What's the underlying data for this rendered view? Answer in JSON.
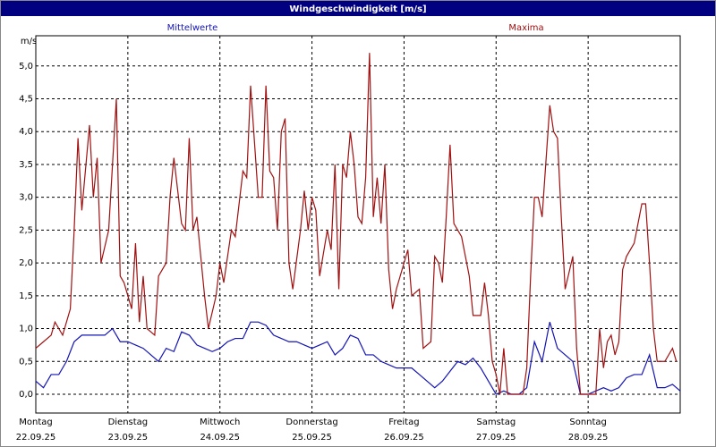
{
  "chart_data": {
    "type": "line",
    "title": "Windgeschwindigkeit [m/s]",
    "y_label": "m/s",
    "xlim": [
      0,
      168
    ],
    "ylim": [
      -0.286,
      5.46
    ],
    "xticks": [
      {
        "value": 0,
        "label": "Montag"
      },
      {
        "value": 24,
        "label": "Dienstag"
      },
      {
        "value": 48,
        "label": "Mittwoch"
      },
      {
        "value": 72,
        "label": "Donnerstag"
      },
      {
        "value": 96,
        "label": "Freitag"
      },
      {
        "value": 120,
        "label": "Samstag"
      },
      {
        "value": 144,
        "label": "Sonntag"
      }
    ],
    "xtick_dates": [
      "22.09.25",
      "23.09.25",
      "24.09.25",
      "25.09.25",
      "26.09.25",
      "27.09.25",
      "28.09.25"
    ],
    "yticks": [
      {
        "value": 0,
        "label": "0,0"
      },
      {
        "value": 0.5,
        "label": "0,5"
      },
      {
        "value": 1,
        "label": "1,0"
      },
      {
        "value": 1.5,
        "label": "1,5"
      },
      {
        "value": 2,
        "label": "2,0"
      },
      {
        "value": 2.5,
        "label": "2,5"
      },
      {
        "value": 3,
        "label": "3,0"
      },
      {
        "value": 3.5,
        "label": "3,5"
      },
      {
        "value": 4,
        "label": "4,0"
      },
      {
        "value": 4.5,
        "label": "4,5"
      },
      {
        "value": 5,
        "label": "5,0"
      }
    ],
    "grid": true,
    "series": [
      {
        "name": "Mittelwerte",
        "color": "#1414b4",
        "x": [
          0,
          2,
          4,
          6,
          8,
          10,
          12,
          14,
          16,
          18,
          20,
          22,
          24,
          26,
          28,
          30,
          32,
          34,
          36,
          38,
          40,
          42,
          44,
          46,
          48,
          50,
          52,
          54,
          56,
          58,
          60,
          62,
          64,
          66,
          68,
          70,
          72,
          74,
          76,
          78,
          80,
          82,
          84,
          86,
          88,
          90,
          92,
          94,
          96,
          98,
          100,
          102,
          104,
          106,
          108,
          110,
          112,
          114,
          116,
          118,
          120,
          122,
          124,
          126,
          128,
          130,
          132,
          134,
          136,
          138,
          140,
          142,
          144,
          146,
          148,
          150,
          152,
          154,
          156,
          158,
          160,
          162,
          164,
          166,
          168
        ],
        "values": [
          0.2,
          0.1,
          0.3,
          0.3,
          0.5,
          0.8,
          0.9,
          0.9,
          0.9,
          0.9,
          1.0,
          0.8,
          0.8,
          0.75,
          0.7,
          0.6,
          0.5,
          0.7,
          0.65,
          0.95,
          0.9,
          0.75,
          0.7,
          0.65,
          0.7,
          0.8,
          0.85,
          0.85,
          1.1,
          1.1,
          1.05,
          0.9,
          0.85,
          0.8,
          0.8,
          0.75,
          0.7,
          0.75,
          0.8,
          0.6,
          0.7,
          0.9,
          0.85,
          0.6,
          0.6,
          0.5,
          0.45,
          0.4,
          0.4,
          0.4,
          0.3,
          0.2,
          0.1,
          0.2,
          0.35,
          0.5,
          0.45,
          0.55,
          0.4,
          0.2,
          0.0,
          0.05,
          0.0,
          0.0,
          0.1,
          0.8,
          0.5,
          1.1,
          0.7,
          0.6,
          0.5,
          0.0,
          0.0,
          0.05,
          0.1,
          0.05,
          0.1,
          0.25,
          0.3,
          0.3,
          0.6,
          0.1,
          0.1,
          0.15,
          0.05
        ]
      },
      {
        "name": "Maxima",
        "color": "#a01010",
        "x": [
          0,
          2,
          4,
          5,
          7,
          9,
          10,
          11,
          12,
          14,
          15,
          16,
          17,
          19,
          20,
          21,
          22,
          23,
          25,
          26,
          27,
          28,
          29,
          31,
          32,
          34,
          35,
          36,
          38,
          39,
          40,
          41,
          42,
          44,
          45,
          47,
          48,
          49,
          51,
          52,
          54,
          55,
          56,
          58,
          59,
          60,
          61,
          62,
          63,
          64,
          65,
          66,
          67,
          69,
          70,
          71,
          72,
          73,
          74,
          76,
          77,
          78,
          79,
          80,
          81,
          82,
          83,
          84,
          85,
          86,
          87,
          88,
          89,
          90,
          91,
          92,
          93,
          94,
          96,
          97,
          98,
          100,
          101,
          103,
          104,
          105,
          106,
          107,
          108,
          109,
          111,
          112,
          113,
          114,
          116,
          117,
          118,
          119,
          120,
          121,
          122,
          123,
          126,
          127,
          128,
          129,
          130,
          131,
          132,
          134,
          135,
          136,
          137,
          138,
          140,
          141,
          142,
          144,
          145,
          146,
          147,
          148,
          149,
          150,
          151,
          152,
          153,
          154,
          156,
          157,
          158,
          159,
          160,
          161,
          162,
          164,
          166,
          167
        ],
        "values": [
          0.7,
          0.8,
          0.9,
          1.1,
          0.9,
          1.3,
          2.5,
          3.9,
          2.8,
          4.1,
          3.0,
          3.6,
          2.0,
          2.5,
          3.5,
          4.5,
          1.8,
          1.7,
          1.3,
          2.3,
          1.1,
          1.8,
          1.0,
          0.9,
          1.8,
          2.0,
          3.0,
          3.6,
          2.6,
          2.5,
          3.9,
          2.5,
          2.7,
          1.5,
          1.0,
          1.5,
          2.0,
          1.7,
          2.5,
          2.4,
          3.4,
          3.3,
          4.7,
          3.0,
          3.0,
          4.7,
          3.4,
          3.3,
          2.5,
          4.0,
          4.2,
          2.0,
          1.6,
          2.5,
          3.1,
          2.5,
          3.0,
          2.8,
          1.8,
          2.5,
          2.2,
          3.5,
          1.6,
          3.5,
          3.3,
          4.0,
          3.5,
          2.7,
          2.6,
          3.3,
          5.2,
          2.7,
          3.3,
          2.6,
          3.5,
          1.9,
          1.3,
          1.6,
          2.0,
          2.2,
          1.5,
          1.6,
          0.7,
          0.8,
          2.1,
          2.0,
          1.7,
          2.7,
          3.8,
          2.6,
          2.4,
          2.1,
          1.8,
          1.2,
          1.2,
          1.7,
          1.2,
          0.5,
          0.3,
          0.0,
          0.7,
          0.0,
          0.0,
          0.0,
          0.4,
          1.8,
          3.0,
          3.0,
          2.7,
          4.4,
          4.0,
          3.9,
          2.7,
          1.6,
          2.1,
          0.7,
          0.0,
          0.0,
          0.0,
          0.0,
          1.0,
          0.4,
          0.8,
          0.9,
          0.6,
          0.8,
          1.9,
          2.1,
          2.3,
          2.6,
          2.9,
          2.9,
          2.0,
          1.0,
          0.5,
          0.5,
          0.7,
          0.5
        ]
      }
    ]
  }
}
